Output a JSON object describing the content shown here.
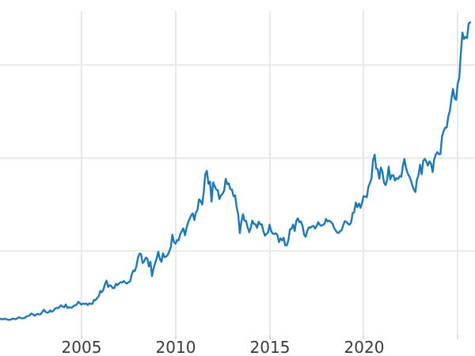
{
  "chart_data": {
    "type": "line",
    "title": "",
    "xlabel": "",
    "ylabel": "",
    "legend": "none",
    "grid": "on",
    "style": {
      "line_color": "#1f77b4",
      "line_width": 2.4,
      "grid_color": "#e7e7e7",
      "tick_color": "#d9d9d9",
      "tick_label_color": "#3a3a3a",
      "background_color": "#ffffff"
    },
    "x_axis": {
      "visible_range": [
        2000.67,
        2025.92
      ],
      "ticks": [
        {
          "year": 2005,
          "label": "2005"
        },
        {
          "year": 2010,
          "label": "2010"
        },
        {
          "year": 2015,
          "label": "2015"
        },
        {
          "year": 2020,
          "label": "2020"
        },
        {
          "year": 2025,
          "label": ""
        }
      ]
    },
    "y_axis": {
      "visible_range": [
        -130,
        3700
      ],
      "gridline_values": [
        1000,
        2000,
        3000
      ],
      "labels_visible": false
    },
    "series": [
      {
        "name": "price-series",
        "frequency": "monthly",
        "start_year": 2000.6667,
        "values": [
          273,
          266,
          266,
          272,
          266,
          262,
          258,
          263,
          272,
          270,
          266,
          274,
          287,
          280,
          275,
          277,
          282,
          297,
          301,
          308,
          327,
          319,
          304,
          313,
          323,
          317,
          319,
          343,
          368,
          347,
          336,
          339,
          361,
          346,
          355,
          376,
          388,
          385,
          398,
          416,
          402,
          396,
          424,
          388,
          394,
          392,
          391,
          410,
          415,
          425,
          453,
          438,
          422,
          435,
          428,
          435,
          418,
          437,
          429,
          433,
          473,
          470,
          495,
          513,
          569,
          556,
          582,
          644,
          680,
          613,
          632,
          623,
          599,
          603,
          646,
          632,
          651,
          664,
          661,
          677,
          659,
          650,
          665,
          672,
          743,
          789,
          783,
          833,
          923,
          971,
          968,
          871,
          885,
          930,
          918,
          833,
          884,
          730,
          814,
          869,
          919,
          992,
          916,
          883,
          975,
          934,
          939,
          955,
          995,
          1040,
          1175,
          1096,
          1078,
          1118,
          1115,
          1179,
          1214,
          1244,
          1169,
          1246,
          1307,
          1346,
          1383,
          1405,
          1333,
          1411,
          1439,
          1556,
          1536,
          1500,
          1628,
          1826,
          1862,
          1722,
          1746,
          1531,
          1737,
          1697,
          1662,
          1651,
          1558,
          1598,
          1615,
          1648,
          1776,
          1719,
          1726,
          1664,
          1661,
          1588,
          1598,
          1469,
          1394,
          1192,
          1313,
          1396,
          1327,
          1324,
          1253,
          1202,
          1251,
          1326,
          1291,
          1288,
          1250,
          1315,
          1285,
          1287,
          1216,
          1164,
          1182,
          1199,
          1283,
          1213,
          1187,
          1184,
          1191,
          1171,
          1095,
          1135,
          1114,
          1142,
          1061,
          1060,
          1118,
          1234,
          1237,
          1285,
          1215,
          1322,
          1351,
          1309,
          1317,
          1272,
          1178,
          1152,
          1212,
          1255,
          1249,
          1266,
          1269,
          1242,
          1267,
          1311,
          1280,
          1271,
          1280,
          1291,
          1345,
          1318,
          1325,
          1315,
          1298,
          1253,
          1224,
          1201,
          1192,
          1215,
          1222,
          1279,
          1321,
          1313,
          1292,
          1283,
          1306,
          1409,
          1414,
          1520,
          1472,
          1511,
          1464,
          1517,
          1589,
          1586,
          1577,
          1687,
          1730,
          1781,
          1976,
          2035,
          1886,
          1879,
          1777,
          1898,
          1848,
          1734,
          1708,
          1768,
          1907,
          1770,
          1814,
          1814,
          1757,
          1783,
          1775,
          1806,
          1797,
          1909,
          1990,
          1897,
          1837,
          1807,
          1766,
          1711,
          1661,
          1634,
          1769,
          1814,
          1928,
          1827,
          1969,
          1990,
          1963,
          1919,
          1965,
          1940,
          1849,
          1984,
          2036,
          2063,
          2040,
          2044,
          2230,
          2286,
          2327,
          2327,
          2448,
          2503,
          2635,
          2744,
          2643,
          2625,
          2798,
          2858,
          3124,
          3350,
          3280,
          3303,
          3290,
          3448,
          3460
        ]
      }
    ]
  }
}
